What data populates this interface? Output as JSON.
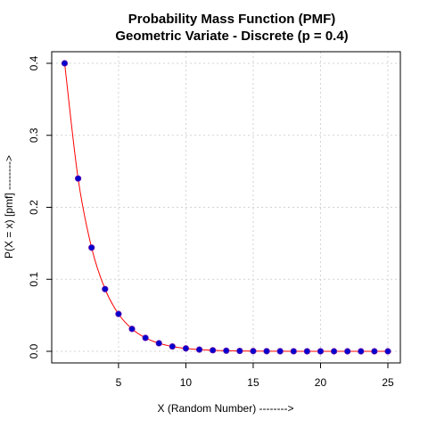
{
  "chart_data": {
    "type": "line",
    "title": "Probability Mass Function (PMF)",
    "subtitle": "Geometric Variate - Discrete (p = 0.4)",
    "xlabel": "X (Random Number) -------->",
    "ylabel": "P(X = x)  [pmf] -------->",
    "xlim": [
      1,
      25
    ],
    "ylim": [
      0,
      0.4
    ],
    "x_ticks": [
      5,
      10,
      15,
      20,
      25
    ],
    "x_tick_labels": [
      "5",
      "10",
      "15",
      "20",
      "25"
    ],
    "y_ticks": [
      0.0,
      0.1,
      0.2,
      0.3,
      0.4
    ],
    "y_tick_labels": [
      "0.0",
      "0.1",
      "0.2",
      "0.3",
      "0.4"
    ],
    "grid": true,
    "series": [
      {
        "x": [
          1,
          2,
          3,
          4,
          5,
          6,
          7,
          8,
          9,
          10,
          11,
          12,
          13,
          14,
          15,
          16,
          17,
          18,
          19,
          20,
          21,
          22,
          23,
          24,
          25
        ],
        "values": [
          0.4,
          0.24,
          0.144,
          0.0864,
          0.05184,
          0.031104,
          0.0186624,
          0.01119744,
          0.006718464,
          0.0040310784,
          0.00241864704,
          0.001451188224,
          0.0008707129344,
          0.00052242776064,
          0.000313456656384,
          0.0001880739938304,
          0.00011284439629824,
          6.7706637778944e-05,
          4.06239826673664e-05,
          2.43743896004198e-05,
          1.46246337602519e-05,
          8.77478025615114e-06,
          5.26486815369068e-06,
          3.15892089221441e-06,
          1.89535253532865e-06
        ],
        "line_color": "#ff0000",
        "point_color": "#0000cd",
        "point_edge_color": "#6a0dad"
      }
    ]
  }
}
